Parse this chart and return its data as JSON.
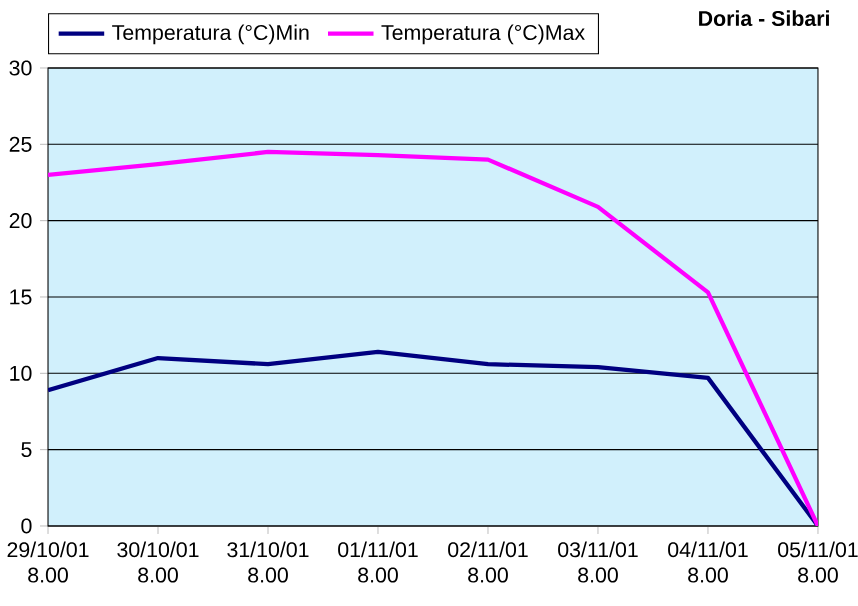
{
  "chart_data": {
    "type": "line",
    "title": "Doria - Sibari",
    "categories": [
      "29/10/01 8.00",
      "30/10/01 8.00",
      "31/10/01 8.00",
      "01/11/01 8.00",
      "02/11/01 8.00",
      "03/11/01 8.00",
      "04/11/01 8.00",
      "05/11/01 8.00"
    ],
    "series": [
      {
        "name": "Temperatura (°C)Min",
        "color": "#000080",
        "values": [
          8.9,
          11,
          10.6,
          11.4,
          10.6,
          10.4,
          9.7,
          0
        ]
      },
      {
        "name": "Temperatura (°C)Max",
        "color": "#ff00ff",
        "values": [
          23,
          23.7,
          24.5,
          24.3,
          24,
          20.9,
          15.3,
          0
        ]
      }
    ],
    "ylim": [
      0,
      30
    ],
    "yticks": [
      0,
      5,
      10,
      15,
      20,
      25,
      30
    ],
    "grid": "y",
    "legend": "top left",
    "marker": "none",
    "line_style": "solid"
  }
}
